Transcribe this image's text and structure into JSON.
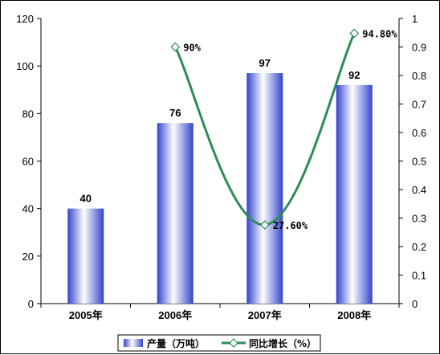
{
  "chart_data": {
    "type": "bar",
    "categories": [
      "2005年",
      "2006年",
      "2007年",
      "2008年"
    ],
    "series": [
      {
        "name": "产量（万吨）",
        "type": "bar",
        "axis": "left",
        "values": [
          40,
          76,
          97,
          92
        ],
        "labels": [
          "40",
          "76",
          "97",
          "92"
        ]
      },
      {
        "name": "同比增长（%）",
        "type": "line",
        "axis": "right",
        "values": [
          null,
          0.9,
          0.276,
          0.948
        ],
        "labels": [
          "",
          "90%",
          "27.60%",
          "94.80%"
        ]
      }
    ],
    "y_left": {
      "min": 0,
      "max": 120,
      "ticks": [
        "0",
        "20",
        "40",
        "60",
        "80",
        "100",
        "120"
      ]
    },
    "y_right": {
      "min": 0,
      "max": 1,
      "ticks": [
        "0",
        "0.1",
        "0.2",
        "0.3",
        "0.4",
        "0.5",
        "0.6",
        "0.7",
        "0.8",
        "0.9",
        "1"
      ]
    },
    "grid": false,
    "legend_position": "bottom",
    "colors": {
      "bar_dark": "#3344cc",
      "bar_light": "#ffffff",
      "line": "#2e8b57",
      "marker_fill": "#ffffff"
    }
  }
}
